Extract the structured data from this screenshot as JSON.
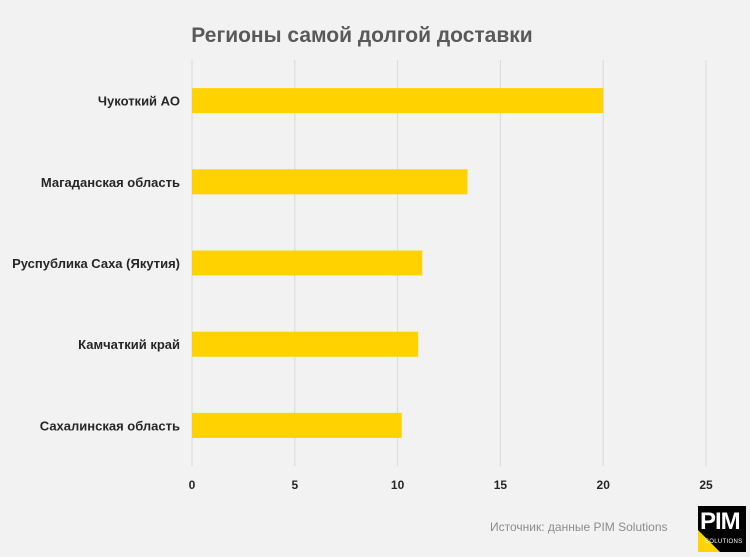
{
  "chart_data": {
    "type": "bar",
    "orientation": "horizontal",
    "title": "Регионы самой долгой доставки",
    "categories": [
      "Чукоткий АО",
      "Магаданская область",
      "Руспублика Саха (Якутия)",
      "Камчаткий край",
      "Сахалинская область"
    ],
    "values": [
      20,
      13.4,
      11.2,
      11,
      10.2
    ],
    "xlim": [
      0,
      25
    ],
    "xticks": [
      0,
      5,
      10,
      15,
      20,
      25
    ],
    "grid": true,
    "bar_color": "#ffd200",
    "grid_color": "#d9d9d9"
  },
  "footer": {
    "source": "Источник: данные PIM Solutions",
    "logo_text": "PIM",
    "logo_subtext": "SOLUTIONS"
  },
  "colors": {
    "background": "#f2f2f2",
    "logo_accent": "#ffd400"
  }
}
